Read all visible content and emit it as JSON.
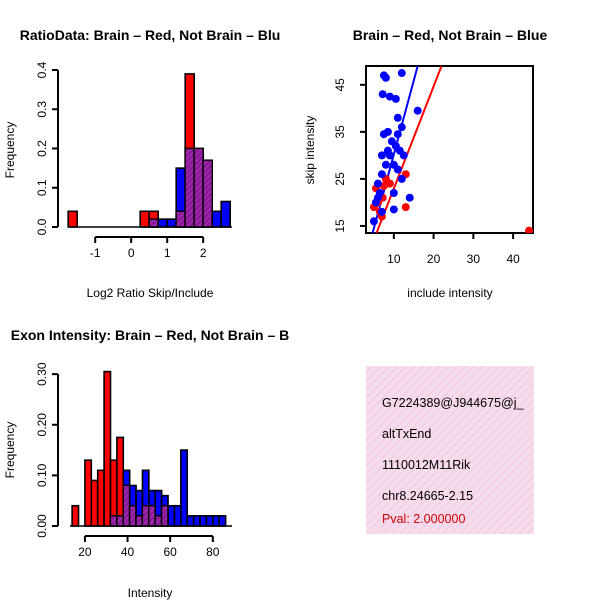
{
  "colors": {
    "red": "#ff0000",
    "blue": "#0000ff",
    "overlap": "#8b008b",
    "info_bg": "#f7dcee",
    "pval": "#cc0000"
  },
  "info_panel": {
    "lines": [
      "G7224389@J944675@j_",
      "altTxEnd",
      "1110012M11Rik",
      "chr8.24665-2.15"
    ],
    "pval": "Pval: 2.000000"
  },
  "chart_data": [
    {
      "type": "bar",
      "title": "RatioData: Brain – Red, Not Brain – Blu",
      "xlabel": "Log2 Ratio Skip/Include",
      "ylabel": "Frequency",
      "xlim": [
        -1.7,
        2.8
      ],
      "ylim": [
        0,
        0.4
      ],
      "xticks": [
        "-1",
        "0",
        "1",
        "2"
      ],
      "xtick_values": [
        -1,
        0,
        1,
        2
      ],
      "yticks": [
        "0.0",
        "0.1",
        "0.2",
        "0.3",
        "0.4"
      ],
      "ytick_values": [
        0,
        0.1,
        0.2,
        0.3,
        0.4
      ],
      "bin_width": 0.25,
      "series": [
        {
          "name": "Brain",
          "color": "red",
          "bins": [
            [
              -1.75,
              0.04
            ],
            [
              0.25,
              0.04
            ],
            [
              0.5,
              0.04
            ],
            [
              1.25,
              0.04
            ],
            [
              1.5,
              0.39
            ],
            [
              1.75,
              0.2
            ],
            [
              2.0,
              0.17
            ]
          ]
        },
        {
          "name": "Not Brain",
          "color": "blue",
          "bins": [
            [
              0.5,
              0.02
            ],
            [
              0.75,
              0.02
            ],
            [
              1.0,
              0.02
            ],
            [
              1.25,
              0.15
            ],
            [
              1.5,
              0.2
            ],
            [
              1.75,
              0.2
            ],
            [
              2.0,
              0.17
            ],
            [
              2.25,
              0.04
            ],
            [
              2.5,
              0.065
            ]
          ]
        }
      ]
    },
    {
      "type": "scatter",
      "title": "Brain – Red, Not Brain – Blue",
      "xlabel": "include intensity",
      "ylabel": "skip intensity",
      "xlim": [
        3,
        45
      ],
      "ylim": [
        13.5,
        49
      ],
      "xticks": [
        "10",
        "20",
        "30",
        "40"
      ],
      "xtick_values": [
        10,
        20,
        30,
        40
      ],
      "yticks": [
        "15",
        "25",
        "35",
        "45"
      ],
      "ytick_values": [
        15,
        25,
        35,
        45
      ],
      "series": [
        {
          "name": "Brain",
          "color": "red",
          "points": [
            [
              5,
              19
            ],
            [
              5.5,
              23
            ],
            [
              6,
              20
            ],
            [
              6.5,
              18
            ],
            [
              7,
              17
            ],
            [
              7.2,
              21
            ],
            [
              7.5,
              23.5
            ],
            [
              8,
              25
            ],
            [
              9,
              24
            ],
            [
              13,
              26
            ],
            [
              13,
              19
            ],
            [
              44,
              14
            ]
          ]
        },
        {
          "name": "Not Brain",
          "color": "blue",
          "points": [
            [
              5,
              16
            ],
            [
              5.5,
              20
            ],
            [
              6,
              21
            ],
            [
              6,
              24
            ],
            [
              6.5,
              22
            ],
            [
              7,
              18
            ],
            [
              7,
              26
            ],
            [
              7,
              30
            ],
            [
              7.5,
              34.5
            ],
            [
              7.2,
              43
            ],
            [
              7.5,
              47
            ],
            [
              8,
              46.5
            ],
            [
              8,
              28
            ],
            [
              8.5,
              31
            ],
            [
              8.5,
              35
            ],
            [
              9,
              42.5
            ],
            [
              9,
              30
            ],
            [
              9.5,
              33
            ],
            [
              10,
              28
            ],
            [
              10,
              22
            ],
            [
              10,
              18.5
            ],
            [
              10.5,
              32
            ],
            [
              10.5,
              42
            ],
            [
              11,
              38
            ],
            [
              11,
              27
            ],
            [
              11,
              34.5
            ],
            [
              11.5,
              31
            ],
            [
              12,
              25
            ],
            [
              12,
              47.5
            ],
            [
              12,
              36
            ],
            [
              12.5,
              30
            ],
            [
              14,
              21
            ],
            [
              16,
              39.5
            ]
          ]
        }
      ],
      "fit_lines": [
        {
          "name": "Brain fit",
          "color": "red",
          "x": [
            4.5,
            22
          ],
          "y": [
            11,
            49
          ]
        },
        {
          "name": "Not Brain fit",
          "color": "blue",
          "x": [
            4.5,
            16
          ],
          "y": [
            13,
            49
          ]
        }
      ]
    },
    {
      "type": "bar",
      "title": "Exon Intensity: Brain – Red, Not Brain – B",
      "xlabel": "Intensity",
      "ylabel": "Frequency",
      "xlim": [
        13,
        89
      ],
      "ylim": [
        0,
        0.32
      ],
      "xticks": [
        "20",
        "40",
        "60",
        "80"
      ],
      "xtick_values": [
        20,
        40,
        60,
        80
      ],
      "yticks": [
        "0.00",
        "0.10",
        "0.20",
        "0.30"
      ],
      "ytick_values": [
        0,
        0.1,
        0.2,
        0.3
      ],
      "bin_width": 3,
      "series": [
        {
          "name": "Brain",
          "color": "red",
          "bins": [
            [
              14,
              0.04
            ],
            [
              20,
              0.13
            ],
            [
              23,
              0.09
            ],
            [
              26,
              0.11
            ],
            [
              29,
              0.305
            ],
            [
              32,
              0.13
            ],
            [
              35,
              0.175
            ],
            [
              38,
              0.08
            ],
            [
              41,
              0.04
            ],
            [
              44,
              0.02
            ],
            [
              47,
              0.04
            ],
            [
              50,
              0.04
            ],
            [
              53,
              0.02
            ],
            [
              56,
              0.04
            ]
          ]
        },
        {
          "name": "Not Brain",
          "color": "blue",
          "bins": [
            [
              32,
              0.02
            ],
            [
              35,
              0.02
            ],
            [
              38,
              0.11
            ],
            [
              41,
              0.08
            ],
            [
              44,
              0.07
            ],
            [
              47,
              0.11
            ],
            [
              50,
              0.07
            ],
            [
              53,
              0.07
            ],
            [
              56,
              0.06
            ],
            [
              59,
              0.04
            ],
            [
              62,
              0.04
            ],
            [
              65,
              0.15
            ],
            [
              68,
              0.02
            ],
            [
              71,
              0.02
            ],
            [
              74,
              0.02
            ],
            [
              77,
              0.02
            ],
            [
              80,
              0.02
            ],
            [
              83,
              0.02
            ]
          ]
        }
      ]
    }
  ]
}
